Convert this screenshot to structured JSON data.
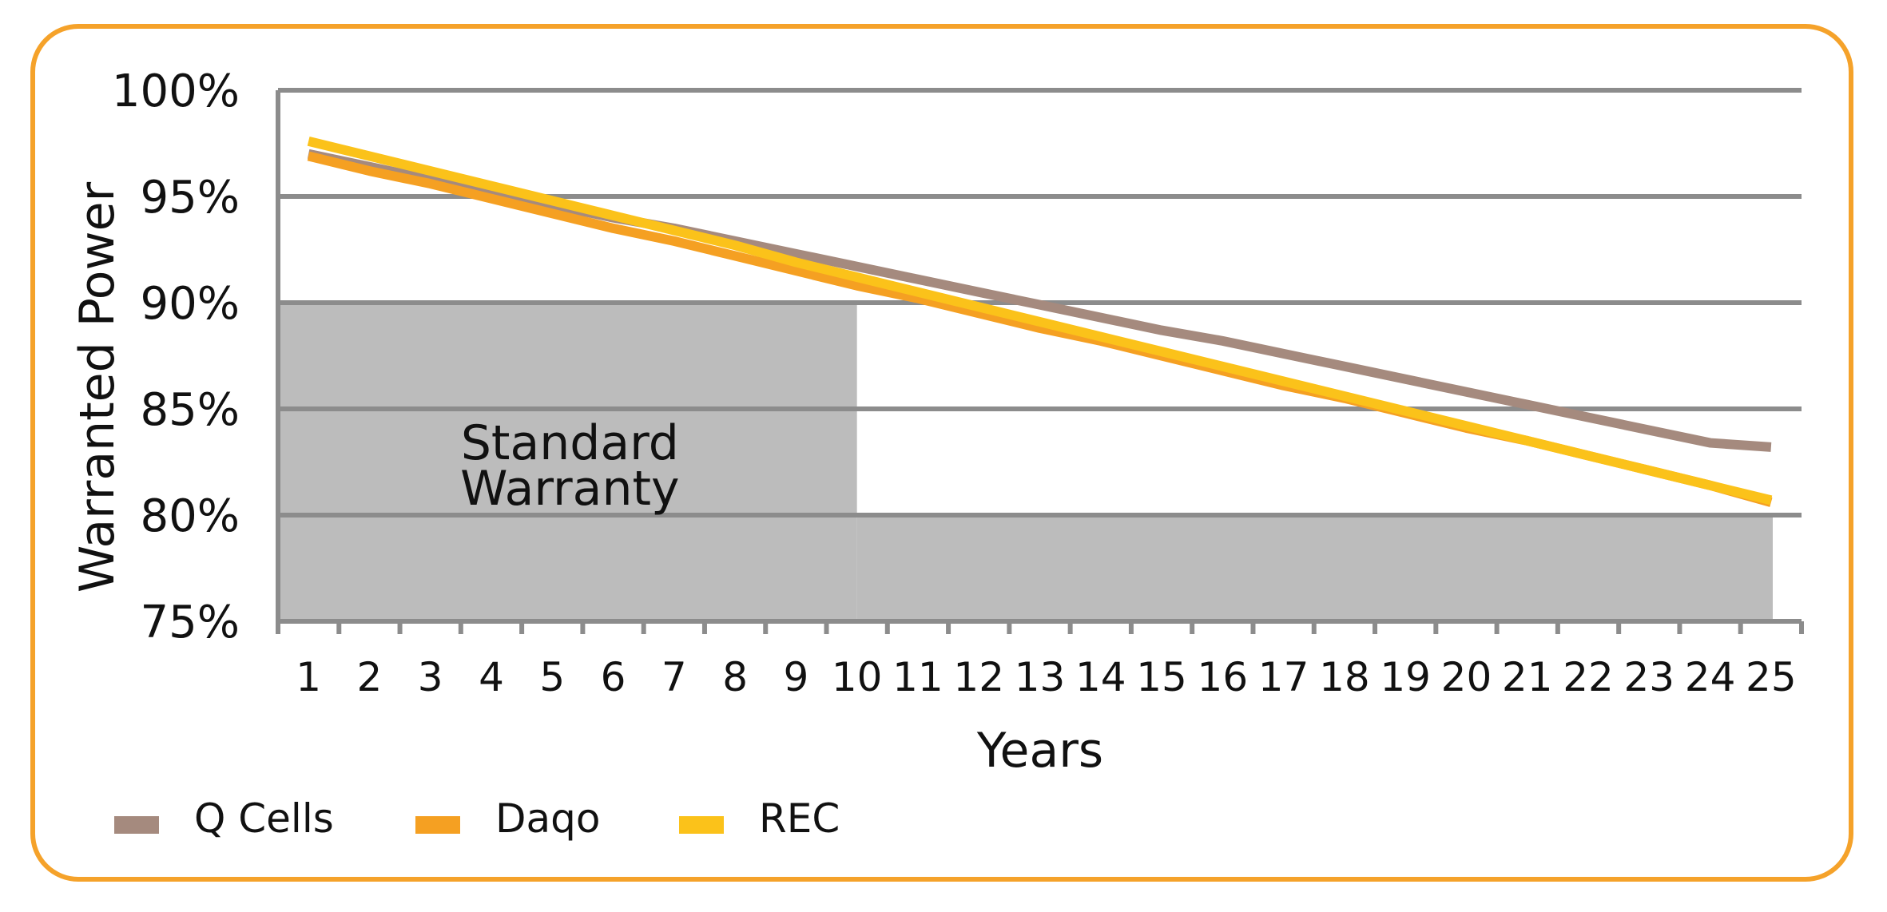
{
  "chart_data": {
    "type": "line",
    "xlabel": "Years",
    "ylabel": "Warranted Power",
    "x": [
      1,
      2,
      3,
      4,
      5,
      6,
      7,
      8,
      9,
      10,
      11,
      12,
      13,
      14,
      15,
      16,
      17,
      18,
      19,
      20,
      21,
      22,
      23,
      24,
      25
    ],
    "xlim": [
      0.5,
      25.5
    ],
    "ylim": [
      75,
      100
    ],
    "yticks": [
      75,
      80,
      85,
      90,
      95,
      100
    ],
    "ytick_labels": [
      "75%",
      "80%",
      "85%",
      "90%",
      "95%",
      "100%"
    ],
    "grid": true,
    "legend_position": "bottom-left",
    "series": [
      {
        "name": "Q Cells",
        "color": "#a58a7e",
        "values": [
          97.0,
          96.4,
          95.8,
          95.2,
          94.6,
          94.0,
          93.5,
          92.9,
          92.3,
          91.7,
          91.1,
          90.5,
          89.9,
          89.3,
          88.7,
          88.2,
          87.6,
          87.0,
          86.4,
          85.8,
          85.2,
          84.6,
          84.0,
          83.4,
          83.2
        ]
      },
      {
        "name": "Daqo",
        "color": "#f5a022",
        "values": [
          96.9,
          96.2,
          95.6,
          94.9,
          94.2,
          93.5,
          92.9,
          92.2,
          91.5,
          90.8,
          90.2,
          89.5,
          88.8,
          88.2,
          87.5,
          86.8,
          86.1,
          85.5,
          84.8,
          84.1,
          83.5,
          82.8,
          82.1,
          81.4,
          80.6
        ]
      },
      {
        "name": "REC",
        "color": "#fbc21a",
        "values": [
          97.6,
          96.9,
          96.2,
          95.5,
          94.8,
          94.1,
          93.4,
          92.7,
          91.9,
          91.2,
          90.5,
          89.8,
          89.1,
          88.4,
          87.7,
          87.0,
          86.3,
          85.6,
          84.9,
          84.2,
          83.5,
          82.8,
          82.1,
          81.4,
          80.7
        ]
      }
    ],
    "shaded_regions": [
      {
        "label_lines": [
          "Standard",
          "Warranty"
        ],
        "x_range": [
          0.5,
          10
        ],
        "y_range": [
          75,
          90
        ],
        "color": "#bcbcbc"
      },
      {
        "x_range": [
          10,
          25.5
        ],
        "y_range": [
          75,
          80
        ],
        "color": "#bcbcbc"
      }
    ]
  },
  "colors": {
    "frame": "#f5a22a",
    "grid": "#8c8c8c",
    "shade": "#bcbcbc"
  }
}
